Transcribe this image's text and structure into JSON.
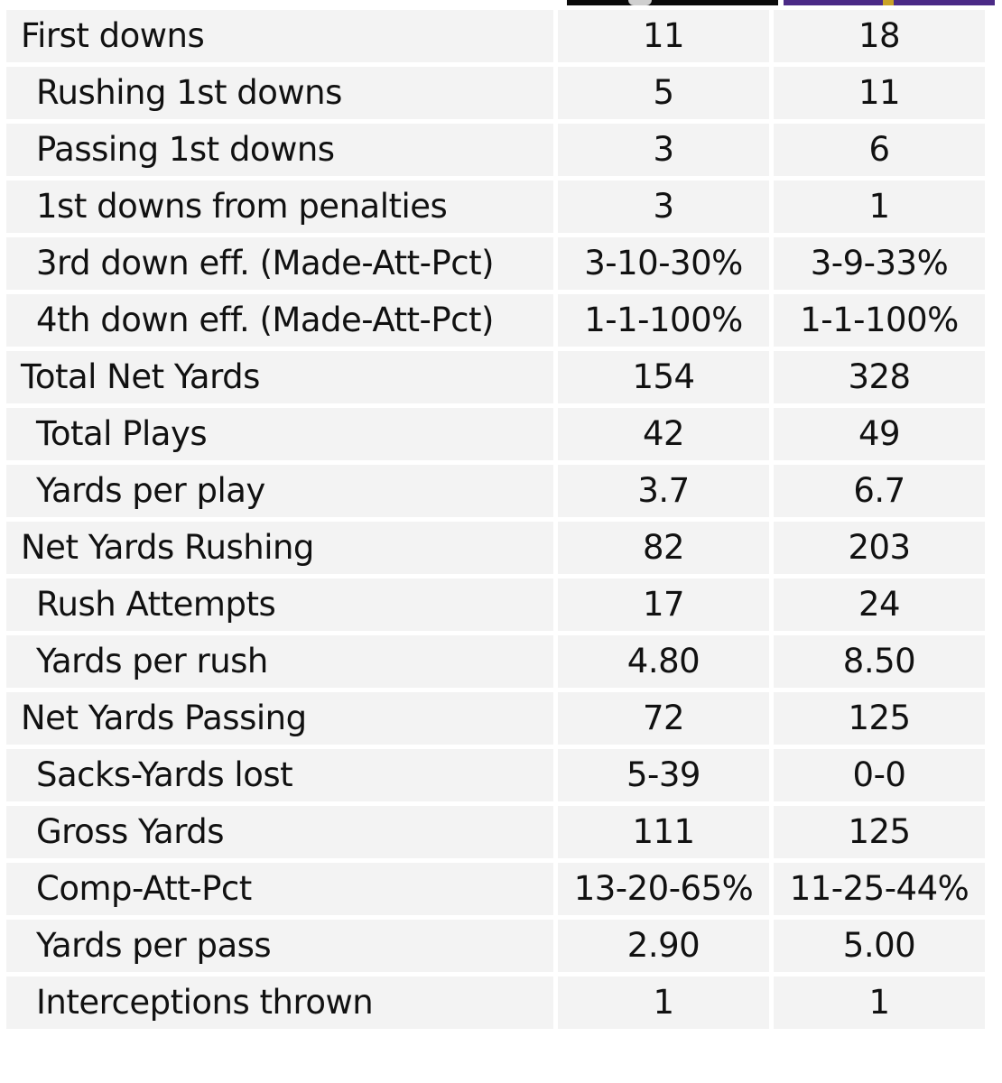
{
  "table": {
    "rows": [
      {
        "label": "First downs",
        "away": "11",
        "home": "18",
        "sub": false
      },
      {
        "label": "Rushing 1st downs",
        "away": "5",
        "home": "11",
        "sub": true
      },
      {
        "label": "Passing 1st downs",
        "away": "3",
        "home": "6",
        "sub": true
      },
      {
        "label": "1st downs from penalties",
        "away": "3",
        "home": "1",
        "sub": true
      },
      {
        "label": "3rd down eff. (Made-Att-Pct)",
        "away": "3-10-30%",
        "home": "3-9-33%",
        "sub": true
      },
      {
        "label": "4th down eff. (Made-Att-Pct)",
        "away": "1-1-100%",
        "home": "1-1-100%",
        "sub": true
      },
      {
        "label": "Total Net Yards",
        "away": "154",
        "home": "328",
        "sub": false
      },
      {
        "label": "Total Plays",
        "away": "42",
        "home": "49",
        "sub": true
      },
      {
        "label": "Yards per play",
        "away": "3.7",
        "home": "6.7",
        "sub": true
      },
      {
        "label": "Net Yards Rushing",
        "away": "82",
        "home": "203",
        "sub": false
      },
      {
        "label": "Rush Attempts",
        "away": "17",
        "home": "24",
        "sub": true
      },
      {
        "label": "Yards per rush",
        "away": "4.80",
        "home": "8.50",
        "sub": true
      },
      {
        "label": "Net Yards Passing",
        "away": "72",
        "home": "125",
        "sub": false
      },
      {
        "label": "Sacks-Yards lost",
        "away": "5-39",
        "home": "0-0",
        "sub": true
      },
      {
        "label": "Gross Yards",
        "away": "111",
        "home": "125",
        "sub": true
      },
      {
        "label": "Comp-Att-Pct",
        "away": "13-20-65%",
        "home": "11-25-44%",
        "sub": true
      },
      {
        "label": "Yards per pass",
        "away": "2.90",
        "home": "5.00",
        "sub": true
      },
      {
        "label": "Interceptions thrown",
        "away": "1",
        "home": "1",
        "sub": true
      }
    ]
  },
  "colors": {
    "away_team_strip": "#0b0b0b",
    "home_team_strip": "#4b2a86",
    "cell_background": "#f3f3f3"
  }
}
